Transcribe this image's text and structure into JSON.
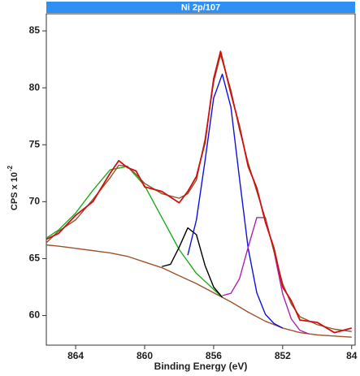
{
  "chart_data": {
    "type": "line",
    "title": "Ni 2p/107",
    "x_label": "Binding Energy (eV)",
    "y_label": "CPS x 10",
    "y_label_exponent": "-2",
    "xlim": [
      865.7,
      847.8
    ],
    "ylim": [
      57.4,
      86.5
    ],
    "xticks": [
      864,
      860,
      856,
      852,
      {
        "value": 848,
        "label": "84"
      }
    ],
    "yticks": [
      60,
      65,
      70,
      75,
      80,
      85
    ],
    "title_bar_color": "#2f8ff2",
    "series": [
      {
        "color": "#a0522d",
        "x": [
          865.7,
          865,
          864,
          863,
          862,
          861,
          860,
          859,
          858,
          857,
          856,
          855,
          854,
          853,
          852,
          851,
          850,
          849,
          848
        ],
        "values": [
          66.2,
          66.1,
          65.9,
          65.7,
          65.5,
          65.2,
          64.7,
          64.2,
          63.5,
          62.8,
          62.0,
          61.2,
          60.3,
          59.5,
          58.9,
          58.5,
          58.3,
          58.2,
          58.1
        ]
      },
      {
        "color": "#22aa22",
        "x": [
          865.7,
          865,
          864,
          863,
          862,
          861,
          860,
          859,
          858,
          857,
          856,
          855.5
        ],
        "values": [
          66.8,
          67.5,
          69.0,
          71.0,
          72.8,
          73.1,
          71.4,
          68.6,
          65.8,
          63.7,
          62.3,
          61.6
        ]
      },
      {
        "color": "#000000",
        "x": [
          859,
          858.5,
          858,
          857.5,
          857,
          856.5,
          856,
          855.5
        ],
        "values": [
          64.3,
          64.5,
          66.0,
          67.7,
          67.1,
          64.4,
          62.5,
          61.6
        ]
      },
      {
        "color": "#1010dd",
        "x": [
          857.5,
          857,
          856.5,
          856,
          855.5,
          855,
          854.5,
          854,
          853.5,
          853,
          852.5,
          852
        ],
        "values": [
          65.3,
          68.4,
          73.6,
          79.1,
          81.2,
          78.3,
          72.0,
          65.9,
          62.0,
          60.1,
          59.3,
          58.9
        ]
      },
      {
        "color": "#b020b0",
        "x": [
          855.5,
          855,
          854.5,
          854,
          853.5,
          853,
          852.5,
          852,
          851.5,
          851,
          850.5
        ],
        "values": [
          61.75,
          61.95,
          63.25,
          66.0,
          68.6,
          68.6,
          65.6,
          61.9,
          59.7,
          58.7,
          58.4
        ]
      },
      {
        "color": "#8b5a2b",
        "x": [
          865.7,
          865,
          864,
          863,
          862,
          861.5,
          861,
          860.5,
          860,
          859,
          858,
          857.5,
          857,
          856.5,
          856,
          855.6,
          855,
          854.5,
          854,
          853.5,
          853,
          852.5,
          852,
          851.5,
          851,
          850,
          849,
          848
        ],
        "values": [
          66.4,
          67.4,
          68.4,
          70.2,
          72.1,
          73.2,
          73.1,
          72.4,
          71.6,
          70.7,
          70.3,
          70.7,
          71.9,
          75.5,
          80.5,
          82.9,
          79.8,
          76.3,
          73.4,
          70.9,
          68.5,
          65.6,
          62.8,
          61.0,
          59.9,
          59.2,
          58.8,
          58.6
        ]
      },
      {
        "color": "#d01010",
        "x": [
          865.7,
          865,
          864,
          863,
          862,
          861.5,
          861,
          860.5,
          860,
          859,
          858,
          857.5,
          857,
          856.5,
          856,
          855.6,
          855,
          854.5,
          854,
          853.5,
          853,
          852.5,
          852,
          851.5,
          851,
          850,
          849,
          848
        ],
        "values": [
          66.7,
          67.2,
          68.8,
          70.0,
          72.5,
          73.6,
          73.0,
          72.7,
          71.3,
          70.9,
          69.9,
          70.9,
          72.2,
          75.2,
          80.8,
          83.2,
          79.5,
          76.6,
          73.1,
          71.2,
          68.2,
          65.9,
          62.5,
          61.3,
          59.6,
          59.4,
          58.5,
          58.9
        ]
      }
    ]
  }
}
